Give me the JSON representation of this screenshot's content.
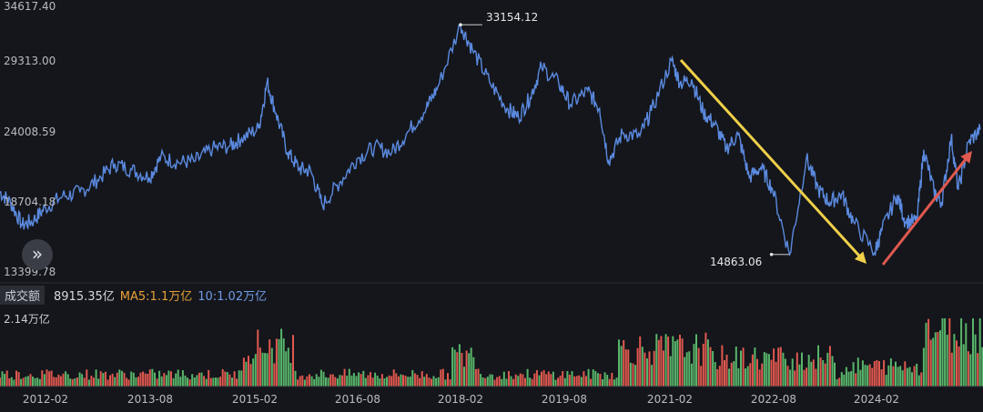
{
  "yaxis": {
    "ticks": [
      "34617.40",
      "29313.00",
      "24008.59",
      "18704.18",
      "13399.78"
    ]
  },
  "annotations": {
    "max_label": "33154.12",
    "min_label": "14863.06"
  },
  "volume": {
    "label": "成交额",
    "value": "8915.35亿",
    "ma5": "MA5:1.1万亿",
    "ma10": "10:1.02万亿",
    "max_label": "2.14万亿"
  },
  "xaxis": {
    "ticks": [
      "2012-02",
      "2013-08",
      "2015-02",
      "2016-08",
      "2018-02",
      "2019-08",
      "2021-02",
      "2022-08",
      "2024-02"
    ]
  },
  "controls": {
    "expand_icon": "»"
  },
  "colors": {
    "line": "#5b8ae0",
    "up": "#e0584f",
    "down": "#58b56a",
    "ma5": "#e9a13b",
    "ma10": "#6f9be6",
    "arrow_down": "#f0d049",
    "arrow_up": "#e0594f"
  },
  "chart_data": {
    "type": "line",
    "ylim": [
      13399.78,
      34617.4
    ],
    "price_points": [
      [
        "2011-06-01",
        19900
      ],
      [
        "2011-08-01",
        19000
      ],
      [
        "2011-10-01",
        17200
      ],
      [
        "2011-12-01",
        17600
      ],
      [
        "2012-02-01",
        18600
      ],
      [
        "2012-05-01",
        19500
      ],
      [
        "2012-08-01",
        19800
      ],
      [
        "2012-11-01",
        20800
      ],
      [
        "2013-02-01",
        22100
      ],
      [
        "2013-05-01",
        21600
      ],
      [
        "2013-08-01",
        21000
      ],
      [
        "2013-10-01",
        22600
      ],
      [
        "2014-01-01",
        22200
      ],
      [
        "2014-04-01",
        22300
      ],
      [
        "2014-07-01",
        23300
      ],
      [
        "2014-10-01",
        23500
      ],
      [
        "2014-12-01",
        24100
      ],
      [
        "2015-03-01",
        24900
      ],
      [
        "2015-04-15",
        28600
      ],
      [
        "2015-06-01",
        26100
      ],
      [
        "2015-08-01",
        23000
      ],
      [
        "2015-10-01",
        21700
      ],
      [
        "2015-12-01",
        21500
      ],
      [
        "2016-02-01",
        18800
      ],
      [
        "2016-05-01",
        20600
      ],
      [
        "2016-08-01",
        22500
      ],
      [
        "2016-11-01",
        23400
      ],
      [
        "2017-02-01",
        23000
      ],
      [
        "2017-05-01",
        24700
      ],
      [
        "2017-08-01",
        26500
      ],
      [
        "2017-10-01",
        28200
      ],
      [
        "2018-01-29",
        33154.12
      ],
      [
        "2018-04-01",
        31200
      ],
      [
        "2018-07-01",
        28600
      ],
      [
        "2018-10-01",
        26500
      ],
      [
        "2018-12-01",
        25800
      ],
      [
        "2019-02-01",
        27400
      ],
      [
        "2019-04-01",
        29800
      ],
      [
        "2019-07-01",
        28500
      ],
      [
        "2019-09-01",
        26800
      ],
      [
        "2019-12-01",
        27900
      ],
      [
        "2020-02-01",
        26500
      ],
      [
        "2020-03-20",
        22300
      ],
      [
        "2020-06-01",
        24500
      ],
      [
        "2020-09-01",
        24300
      ],
      [
        "2020-11-01",
        26300
      ],
      [
        "2021-02-15",
        30300
      ],
      [
        "2021-04-01",
        28500
      ],
      [
        "2021-06-01",
        28800
      ],
      [
        "2021-08-01",
        26200
      ],
      [
        "2021-10-01",
        25200
      ],
      [
        "2021-12-01",
        23300
      ],
      [
        "2022-02-01",
        24400
      ],
      [
        "2022-04-01",
        21000
      ],
      [
        "2022-06-01",
        21800
      ],
      [
        "2022-08-01",
        20100
      ],
      [
        "2022-10-31",
        14863.06
      ],
      [
        "2023-01-27",
        22500
      ],
      [
        "2023-04-01",
        20000
      ],
      [
        "2023-06-01",
        19000
      ],
      [
        "2023-08-01",
        19700
      ],
      [
        "2023-10-01",
        17500
      ],
      [
        "2024-01-22",
        15000
      ],
      [
        "2024-03-01",
        16800
      ],
      [
        "2024-05-20",
        19600
      ],
      [
        "2024-07-01",
        17500
      ],
      [
        "2024-09-01",
        17500
      ],
      [
        "2024-10-07",
        23200
      ],
      [
        "2024-12-01",
        19800
      ],
      [
        "2025-01-10",
        19000
      ],
      [
        "2025-03-01",
        24200
      ],
      [
        "2025-04-07",
        20000
      ],
      [
        "2025-06-01",
        23800
      ],
      [
        "2025-08-01",
        24800
      ]
    ],
    "volume_max": 2.14
  }
}
